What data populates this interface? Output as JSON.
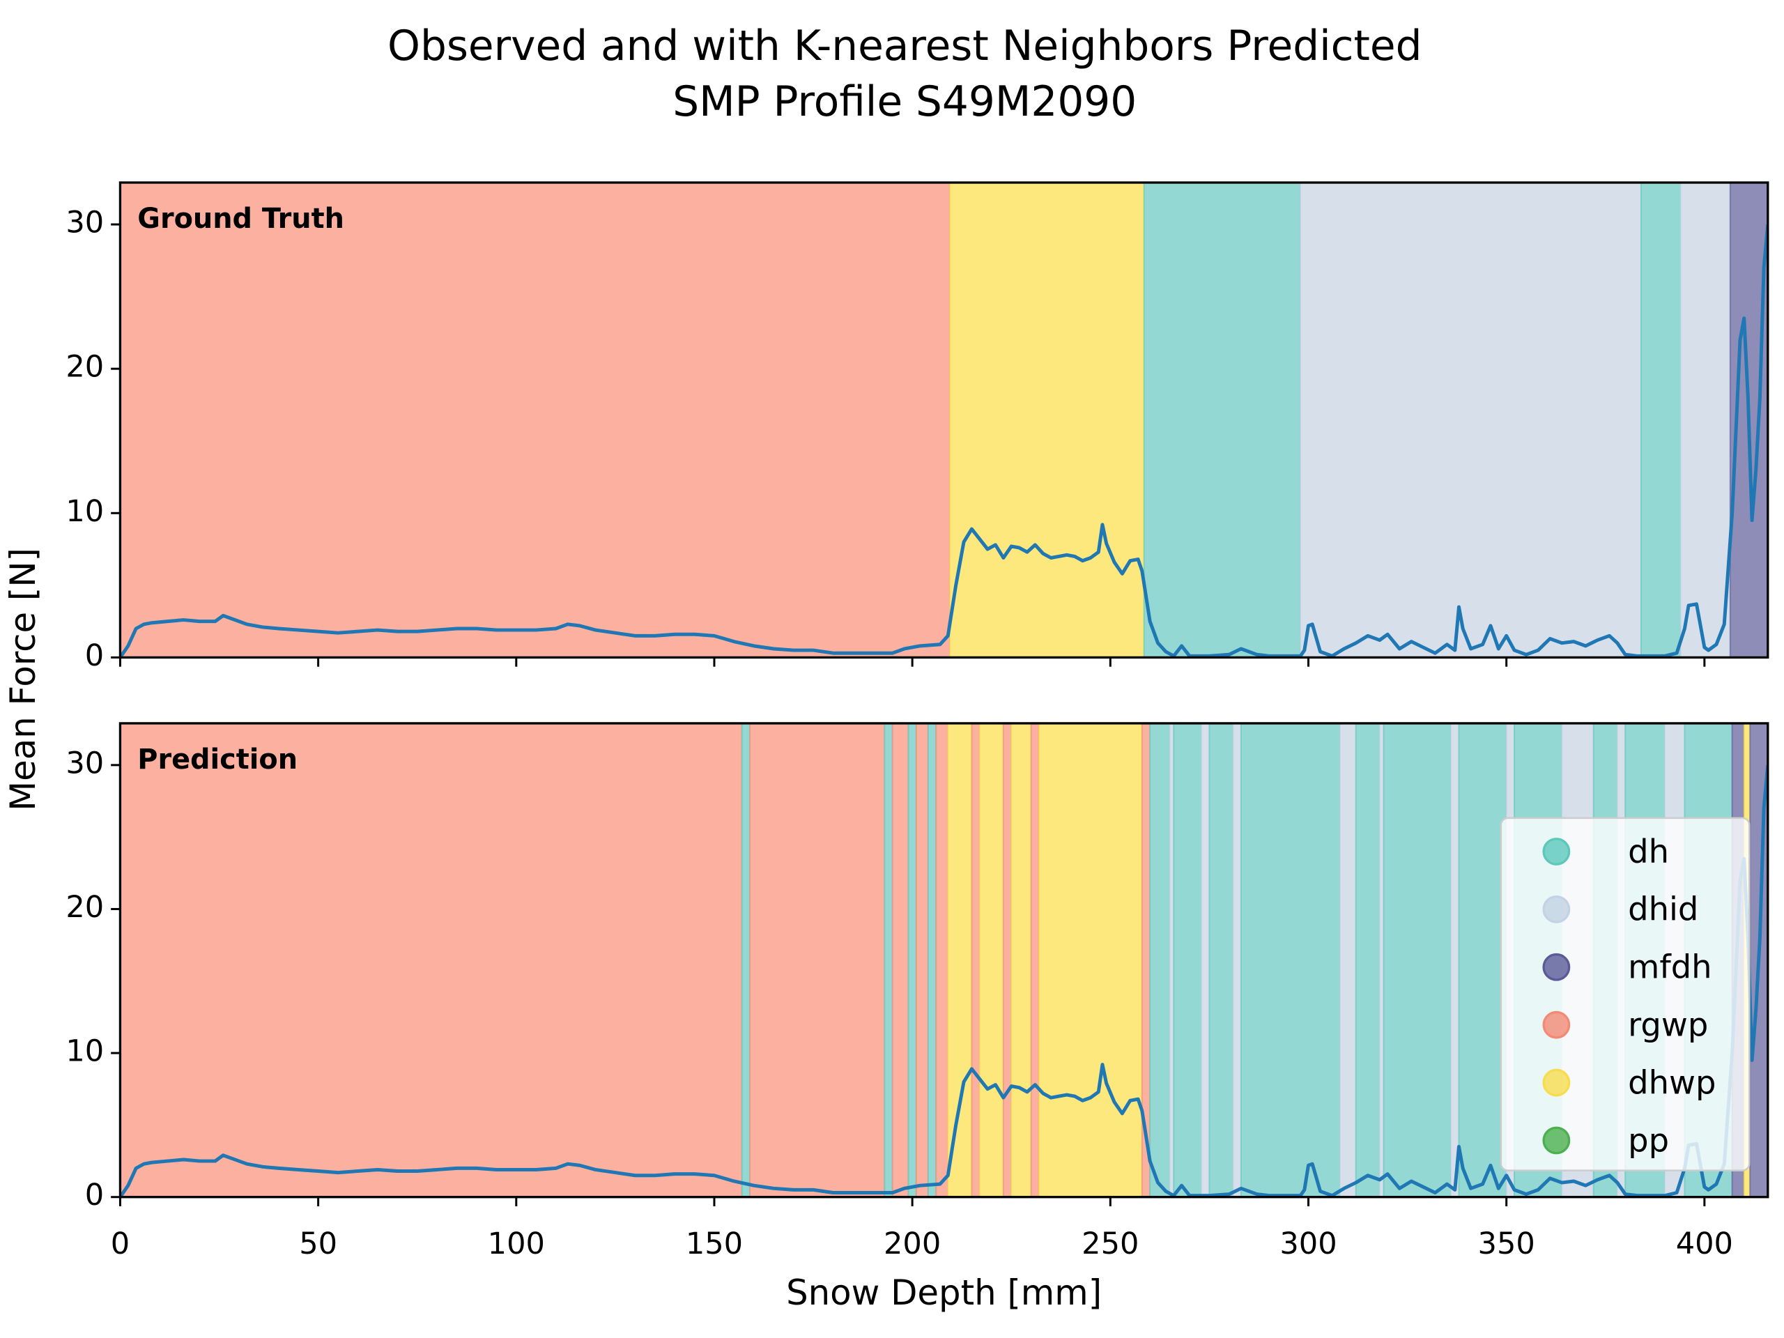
{
  "chart_data": {
    "type": "layered-line",
    "title": "Observed and with K-nearest Neighbors Predicted",
    "subtitle": "SMP Profile S49M2090",
    "xlabel": "Snow Depth [mm]",
    "ylabel": "Mean Force [N]",
    "xlim": [
      0,
      416
    ],
    "xticks": [
      0,
      50,
      100,
      150,
      200,
      250,
      300,
      350,
      400
    ],
    "ylim": [
      0,
      32.9
    ],
    "yticks": [
      0,
      10,
      20,
      30
    ],
    "line_color": "#1f77b4",
    "legend_position": "lower right",
    "classes": [
      {
        "name": "dh",
        "color": "#93d8d3",
        "marker_color": "#5cc8bc"
      },
      {
        "name": "dhid",
        "color": "#d7dfeb",
        "marker_color": "#c3d2e4"
      },
      {
        "name": "mfdh",
        "color": "#8d8db8",
        "marker_color": "#5a5a99"
      },
      {
        "name": "rgwp",
        "color": "#fbb0a0",
        "marker_color": "#f28a75"
      },
      {
        "name": "dhwp",
        "color": "#fde87e",
        "marker_color": "#f7dc4f"
      },
      {
        "name": "pp",
        "color": "#7cc57c",
        "marker_color": "#4caf50"
      }
    ],
    "x": [
      0,
      2,
      4,
      6,
      8,
      12,
      16,
      20,
      24,
      26,
      28,
      32,
      36,
      40,
      45,
      50,
      55,
      60,
      65,
      70,
      75,
      80,
      85,
      90,
      95,
      100,
      105,
      110,
      113,
      116,
      120,
      125,
      130,
      135,
      140,
      145,
      150,
      155,
      160,
      165,
      170,
      175,
      180,
      185,
      190,
      195,
      198,
      202,
      207,
      209,
      211,
      213,
      215,
      217,
      219,
      221,
      223,
      225,
      227,
      229,
      231,
      233,
      235,
      237,
      239,
      241,
      243,
      245,
      247,
      248,
      249,
      251,
      253,
      255,
      257,
      258,
      260,
      262,
      264,
      266,
      268,
      270,
      275,
      280,
      283,
      287,
      290,
      295,
      298,
      299,
      300,
      301,
      303,
      306,
      309,
      312,
      315,
      318,
      320,
      323,
      326,
      329,
      332,
      335,
      337,
      338,
      339,
      341,
      344,
      346,
      348,
      350,
      352,
      355,
      358,
      361,
      364,
      367,
      370,
      373,
      376,
      378,
      380,
      383,
      386,
      390,
      393,
      395,
      396,
      398,
      400,
      401,
      403,
      405,
      407,
      408,
      409,
      410,
      411,
      412,
      413,
      414,
      415,
      416
    ],
    "values": [
      0,
      0.8,
      2.0,
      2.3,
      2.4,
      2.5,
      2.6,
      2.5,
      2.5,
      2.9,
      2.7,
      2.3,
      2.1,
      2.0,
      1.9,
      1.8,
      1.7,
      1.8,
      1.9,
      1.8,
      1.8,
      1.9,
      2.0,
      2.0,
      1.9,
      1.9,
      1.9,
      2.0,
      2.3,
      2.2,
      1.9,
      1.7,
      1.5,
      1.5,
      1.6,
      1.6,
      1.5,
      1.1,
      0.8,
      0.6,
      0.5,
      0.5,
      0.3,
      0.3,
      0.3,
      0.3,
      0.6,
      0.8,
      0.9,
      1.5,
      5,
      8,
      8.9,
      8.2,
      7.5,
      7.8,
      6.9,
      7.7,
      7.6,
      7.3,
      7.8,
      7.2,
      6.9,
      7.0,
      7.1,
      7.0,
      6.7,
      6.9,
      7.3,
      9.2,
      7.9,
      6.6,
      5.8,
      6.7,
      6.8,
      6.0,
      2.5,
      1.0,
      0.4,
      0.1,
      0.8,
      0.1,
      0.1,
      0.2,
      0.6,
      0.2,
      0.1,
      0.1,
      0.1,
      0.5,
      2.2,
      2.3,
      0.4,
      0.1,
      0.6,
      1.0,
      1.5,
      1.2,
      1.6,
      0.6,
      1.1,
      0.7,
      0.3,
      0.9,
      0.5,
      3.5,
      2.0,
      0.6,
      0.9,
      2.2,
      0.6,
      1.5,
      0.5,
      0.2,
      0.5,
      1.3,
      1.0,
      1.1,
      0.8,
      1.2,
      1.5,
      1.0,
      0.2,
      0.1,
      0.1,
      0.1,
      0.3,
      2.0,
      3.6,
      3.7,
      0.7,
      0.5,
      0.9,
      2.3,
      10,
      16,
      22,
      23.5,
      18,
      9.5,
      13,
      18,
      27,
      30
    ],
    "panels": [
      {
        "label": "Ground Truth",
        "segments": [
          {
            "start": 0,
            "end": 209.5,
            "class": "rgwp"
          },
          {
            "start": 209.5,
            "end": 258.5,
            "class": "dhwp"
          },
          {
            "start": 258.5,
            "end": 298,
            "class": "dh"
          },
          {
            "start": 298,
            "end": 384,
            "class": "dhid"
          },
          {
            "start": 384,
            "end": 394,
            "class": "dh"
          },
          {
            "start": 394,
            "end": 406.5,
            "class": "dhid"
          },
          {
            "start": 406.5,
            "end": 416,
            "class": "mfdh"
          }
        ]
      },
      {
        "label": "Prediction",
        "segments": [
          {
            "start": 0,
            "end": 157,
            "class": "rgwp"
          },
          {
            "start": 157,
            "end": 159,
            "class": "dh"
          },
          {
            "start": 159,
            "end": 193,
            "class": "rgwp"
          },
          {
            "start": 193,
            "end": 195,
            "class": "dh"
          },
          {
            "start": 195,
            "end": 199,
            "class": "rgwp"
          },
          {
            "start": 199,
            "end": 201,
            "class": "dh"
          },
          {
            "start": 201,
            "end": 204,
            "class": "rgwp"
          },
          {
            "start": 204,
            "end": 206,
            "class": "dh"
          },
          {
            "start": 206,
            "end": 209,
            "class": "rgwp"
          },
          {
            "start": 209,
            "end": 215,
            "class": "dhwp"
          },
          {
            "start": 215,
            "end": 217,
            "class": "rgwp"
          },
          {
            "start": 217,
            "end": 223,
            "class": "dhwp"
          },
          {
            "start": 223,
            "end": 225,
            "class": "rgwp"
          },
          {
            "start": 225,
            "end": 230,
            "class": "dhwp"
          },
          {
            "start": 230,
            "end": 232,
            "class": "rgwp"
          },
          {
            "start": 232,
            "end": 258,
            "class": "dhwp"
          },
          {
            "start": 258,
            "end": 260,
            "class": "rgwp"
          },
          {
            "start": 260,
            "end": 265,
            "class": "dh"
          },
          {
            "start": 265,
            "end": 266,
            "class": "dhid"
          },
          {
            "start": 266,
            "end": 273,
            "class": "dh"
          },
          {
            "start": 273,
            "end": 275,
            "class": "dhid"
          },
          {
            "start": 275,
            "end": 281,
            "class": "dh"
          },
          {
            "start": 281,
            "end": 283,
            "class": "dhid"
          },
          {
            "start": 283,
            "end": 308,
            "class": "dh"
          },
          {
            "start": 308,
            "end": 312,
            "class": "dhid"
          },
          {
            "start": 312,
            "end": 318,
            "class": "dh"
          },
          {
            "start": 318,
            "end": 319,
            "class": "dhid"
          },
          {
            "start": 319,
            "end": 336,
            "class": "dh"
          },
          {
            "start": 336,
            "end": 338,
            "class": "dhid"
          },
          {
            "start": 338,
            "end": 350,
            "class": "dh"
          },
          {
            "start": 350,
            "end": 352,
            "class": "dhid"
          },
          {
            "start": 352,
            "end": 364,
            "class": "dh"
          },
          {
            "start": 364,
            "end": 372,
            "class": "dhid"
          },
          {
            "start": 372,
            "end": 378,
            "class": "dh"
          },
          {
            "start": 378,
            "end": 380,
            "class": "dhid"
          },
          {
            "start": 380,
            "end": 390,
            "class": "dh"
          },
          {
            "start": 390,
            "end": 395,
            "class": "dhid"
          },
          {
            "start": 395,
            "end": 407,
            "class": "dh"
          },
          {
            "start": 407,
            "end": 410,
            "class": "mfdh"
          },
          {
            "start": 410,
            "end": 411.5,
            "class": "dhwp"
          },
          {
            "start": 411.5,
            "end": 416,
            "class": "mfdh"
          }
        ]
      }
    ]
  }
}
